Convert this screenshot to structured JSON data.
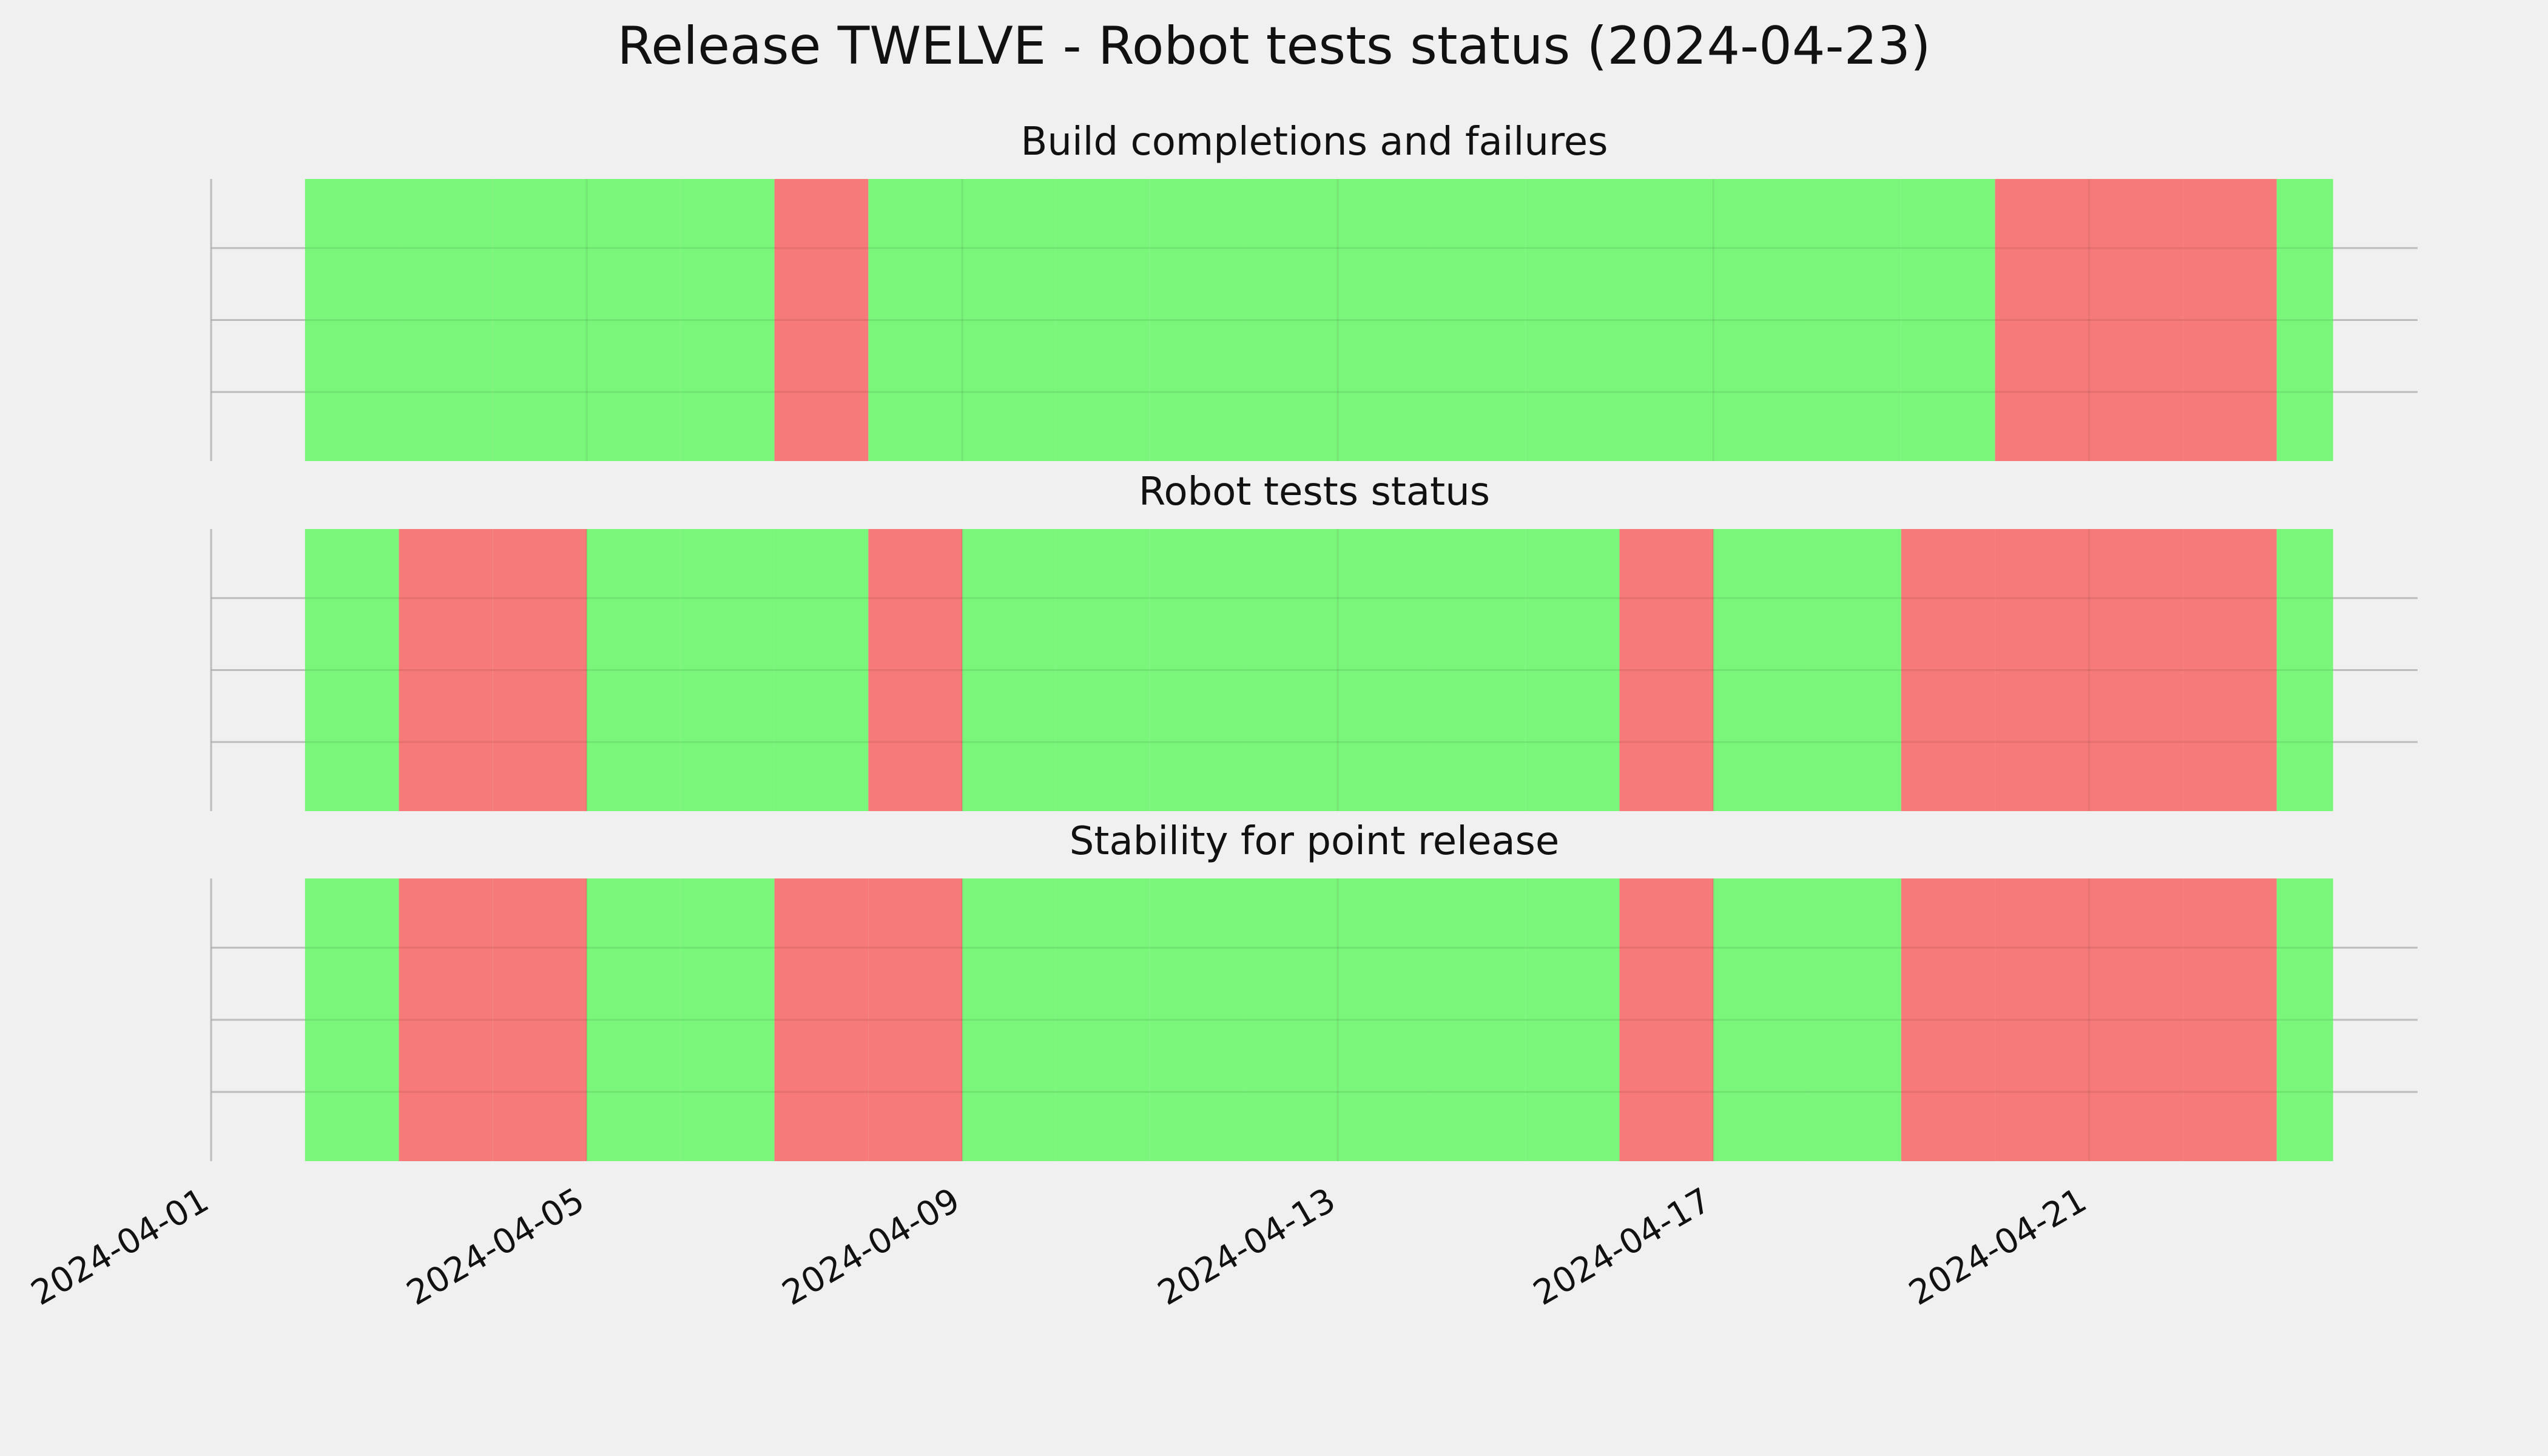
{
  "chart_data": {
    "type": "timeline",
    "title": "Release TWELVE - Robot tests status (2024-04-23)",
    "x_range": [
      "2024-04-01",
      "2024-04-24.5"
    ],
    "x_ticks": [
      "2024-04-01",
      "2024-04-05",
      "2024-04-09",
      "2024-04-13",
      "2024-04-17",
      "2024-04-21"
    ],
    "colors": {
      "pass": "#77f777",
      "fail": "#f77777",
      "background": "#f0f0f0",
      "grid": "#cbcbcb"
    },
    "panels": [
      {
        "title": "Build completions and failures",
        "days": [
          {
            "date": "2024-04-02",
            "status": "pass"
          },
          {
            "date": "2024-04-03",
            "status": "pass"
          },
          {
            "date": "2024-04-04",
            "status": "pass"
          },
          {
            "date": "2024-04-05",
            "status": "pass"
          },
          {
            "date": "2024-04-06",
            "status": "pass"
          },
          {
            "date": "2024-04-07",
            "status": "fail"
          },
          {
            "date": "2024-04-08",
            "status": "pass"
          },
          {
            "date": "2024-04-09",
            "status": "pass"
          },
          {
            "date": "2024-04-10",
            "status": "pass"
          },
          {
            "date": "2024-04-11",
            "status": "pass"
          },
          {
            "date": "2024-04-12",
            "status": "pass"
          },
          {
            "date": "2024-04-13",
            "status": "pass"
          },
          {
            "date": "2024-04-14",
            "status": "pass"
          },
          {
            "date": "2024-04-15",
            "status": "pass"
          },
          {
            "date": "2024-04-16",
            "status": "pass"
          },
          {
            "date": "2024-04-17",
            "status": "pass"
          },
          {
            "date": "2024-04-18",
            "status": "pass"
          },
          {
            "date": "2024-04-19",
            "status": "pass"
          },
          {
            "date": "2024-04-20",
            "status": "fail"
          },
          {
            "date": "2024-04-21",
            "status": "fail"
          },
          {
            "date": "2024-04-22",
            "status": "fail"
          },
          {
            "date": "2024-04-23",
            "status": "pass",
            "fraction": 0.6
          }
        ]
      },
      {
        "title": "Robot tests status",
        "days": [
          {
            "date": "2024-04-02",
            "status": "pass"
          },
          {
            "date": "2024-04-03",
            "status": "fail"
          },
          {
            "date": "2024-04-04",
            "status": "fail"
          },
          {
            "date": "2024-04-05",
            "status": "pass"
          },
          {
            "date": "2024-04-06",
            "status": "pass"
          },
          {
            "date": "2024-04-07",
            "status": "pass"
          },
          {
            "date": "2024-04-08",
            "status": "fail"
          },
          {
            "date": "2024-04-09",
            "status": "pass"
          },
          {
            "date": "2024-04-10",
            "status": "pass"
          },
          {
            "date": "2024-04-11",
            "status": "pass"
          },
          {
            "date": "2024-04-12",
            "status": "pass"
          },
          {
            "date": "2024-04-13",
            "status": "pass"
          },
          {
            "date": "2024-04-14",
            "status": "pass"
          },
          {
            "date": "2024-04-15",
            "status": "pass"
          },
          {
            "date": "2024-04-16",
            "status": "fail"
          },
          {
            "date": "2024-04-17",
            "status": "pass"
          },
          {
            "date": "2024-04-18",
            "status": "pass"
          },
          {
            "date": "2024-04-19",
            "status": "fail"
          },
          {
            "date": "2024-04-20",
            "status": "fail"
          },
          {
            "date": "2024-04-21",
            "status": "fail"
          },
          {
            "date": "2024-04-22",
            "status": "fail"
          },
          {
            "date": "2024-04-23",
            "status": "pass",
            "fraction": 0.6
          }
        ]
      },
      {
        "title": "Stability for point release",
        "days": [
          {
            "date": "2024-04-02",
            "status": "pass"
          },
          {
            "date": "2024-04-03",
            "status": "fail"
          },
          {
            "date": "2024-04-04",
            "status": "fail"
          },
          {
            "date": "2024-04-05",
            "status": "pass"
          },
          {
            "date": "2024-04-06",
            "status": "pass"
          },
          {
            "date": "2024-04-07",
            "status": "fail"
          },
          {
            "date": "2024-04-08",
            "status": "fail"
          },
          {
            "date": "2024-04-09",
            "status": "pass"
          },
          {
            "date": "2024-04-10",
            "status": "pass"
          },
          {
            "date": "2024-04-11",
            "status": "pass"
          },
          {
            "date": "2024-04-12",
            "status": "pass"
          },
          {
            "date": "2024-04-13",
            "status": "pass"
          },
          {
            "date": "2024-04-14",
            "status": "pass"
          },
          {
            "date": "2024-04-15",
            "status": "pass"
          },
          {
            "date": "2024-04-16",
            "status": "fail"
          },
          {
            "date": "2024-04-17",
            "status": "pass"
          },
          {
            "date": "2024-04-18",
            "status": "pass"
          },
          {
            "date": "2024-04-19",
            "status": "fail"
          },
          {
            "date": "2024-04-20",
            "status": "fail"
          },
          {
            "date": "2024-04-21",
            "status": "fail"
          },
          {
            "date": "2024-04-22",
            "status": "fail"
          },
          {
            "date": "2024-04-23",
            "status": "pass",
            "fraction": 0.6
          }
        ]
      }
    ]
  }
}
